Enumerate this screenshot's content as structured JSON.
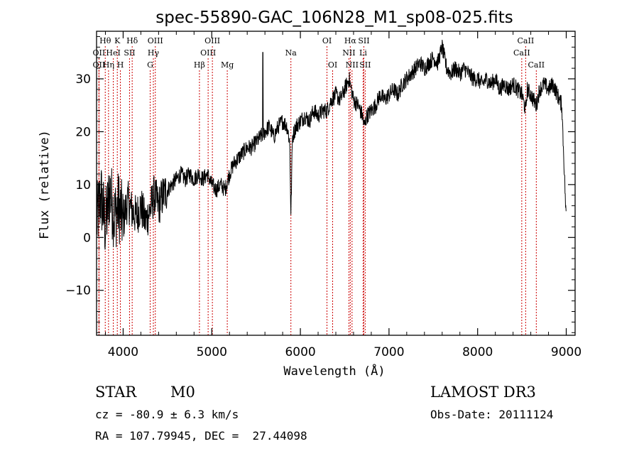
{
  "chart_data": {
    "type": "line",
    "title": "spec-55890-GAC_106N28_M1_sp08-025.fits",
    "xlabel": "Wavelength (Å)",
    "ylabel": "Flux (relative)",
    "xlim": [
      3700,
      9100
    ],
    "ylim": [
      -18.5,
      39
    ],
    "xticks": [
      4000,
      5000,
      6000,
      7000,
      8000,
      9000
    ],
    "yticks": [
      -10,
      0,
      10,
      20,
      30
    ],
    "series": [
      {
        "name": "flux",
        "x": [
          3700,
          3750,
          3800,
          3850,
          3900,
          3950,
          4000,
          4050,
          4100,
          4150,
          4200,
          4250,
          4300,
          4350,
          4400,
          4450,
          4500,
          4550,
          4600,
          4650,
          4700,
          4750,
          4800,
          4850,
          4900,
          4950,
          5000,
          5050,
          5100,
          5150,
          5200,
          5250,
          5300,
          5350,
          5400,
          5450,
          5500,
          5550,
          5600,
          5650,
          5700,
          5750,
          5800,
          5850,
          5880,
          5893,
          5910,
          5950,
          6000,
          6050,
          6100,
          6150,
          6200,
          6250,
          6300,
          6350,
          6400,
          6450,
          6500,
          6550,
          6600,
          6650,
          6700,
          6720,
          6750,
          6800,
          6850,
          6900,
          6950,
          7000,
          7050,
          7100,
          7150,
          7200,
          7250,
          7300,
          7350,
          7400,
          7450,
          7500,
          7550,
          7600,
          7650,
          7700,
          7750,
          7800,
          7850,
          7900,
          7950,
          8000,
          8050,
          8100,
          8150,
          8200,
          8250,
          8300,
          8350,
          8400,
          8450,
          8500,
          8542,
          8560,
          8600,
          8662,
          8700,
          8750,
          8800,
          8850,
          8900,
          8950,
          9000
        ],
        "y": [
          3,
          8,
          2,
          9,
          4,
          6,
          3,
          7,
          5,
          4,
          6,
          3,
          5,
          8,
          6,
          8,
          9,
          10,
          11,
          12,
          11,
          12,
          11,
          12,
          11,
          12,
          10,
          9,
          10,
          9,
          12,
          14,
          15,
          16,
          17,
          17,
          18,
          19,
          20,
          21,
          19,
          21,
          22,
          21,
          18,
          4,
          19,
          21,
          22,
          23,
          22,
          24,
          23,
          24,
          24,
          26,
          27,
          26,
          28,
          30,
          26,
          25,
          23,
          21,
          23,
          24,
          25,
          27,
          26,
          27,
          28,
          27,
          29,
          30,
          31,
          32,
          33,
          32,
          33,
          34,
          33,
          36,
          32,
          31,
          32,
          31,
          32,
          31,
          30,
          30,
          29,
          30,
          29,
          30,
          28,
          29,
          28,
          29,
          28,
          27,
          24,
          28,
          27,
          25,
          28,
          29,
          28,
          29,
          27,
          25,
          3
        ]
      }
    ],
    "line_markers": [
      {
        "label": "Hθ",
        "wl": 3798,
        "row": 0
      },
      {
        "label": "OII",
        "wl": 3727,
        "row": 1
      },
      {
        "label": "OII",
        "wl": 3727,
        "row": 2
      },
      {
        "label": "K",
        "wl": 3934,
        "row": 0
      },
      {
        "label": "HeI",
        "wl": 3889,
        "row": 1
      },
      {
        "label": "Hη",
        "wl": 3835,
        "row": 2
      },
      {
        "label": "Hδ",
        "wl": 4102,
        "row": 0
      },
      {
        "label": "SII",
        "wl": 4072,
        "row": 1
      },
      {
        "label": "H",
        "wl": 3969,
        "row": 2
      },
      {
        "label": "OIII",
        "wl": 4363,
        "row": 0
      },
      {
        "label": "Hγ",
        "wl": 4341,
        "row": 1
      },
      {
        "label": "G",
        "wl": 4305,
        "row": 2
      },
      {
        "label": "OIII",
        "wl": 5007,
        "row": 0
      },
      {
        "label": "OIII",
        "wl": 4959,
        "row": 1
      },
      {
        "label": "Hβ",
        "wl": 4861,
        "row": 2
      },
      {
        "label": "Mg",
        "wl": 5175,
        "row": 2
      },
      {
        "label": "Na",
        "wl": 5893,
        "row": 1
      },
      {
        "label": "OI",
        "wl": 6300,
        "row": 0
      },
      {
        "label": "OI",
        "wl": 6364,
        "row": 2
      },
      {
        "label": "Hα",
        "wl": 6563,
        "row": 0
      },
      {
        "label": "SII",
        "wl": 6716,
        "row": 0
      },
      {
        "label": "NII",
        "wl": 6548,
        "row": 1
      },
      {
        "label": "Li",
        "wl": 6708,
        "row": 1
      },
      {
        "label": "NII",
        "wl": 6583,
        "row": 2
      },
      {
        "label": "SII",
        "wl": 6731,
        "row": 2
      },
      {
        "label": "CaII",
        "wl": 8542,
        "row": 0
      },
      {
        "label": "CaII",
        "wl": 8498,
        "row": 1
      },
      {
        "label": "CaII",
        "wl": 8662,
        "row": 2
      }
    ]
  },
  "info": {
    "object_type": "STAR",
    "subclass": "M0",
    "survey": "LAMOST DR3",
    "cz": "cz = -80.9 ± 6.3 km/s",
    "obs_date": "Obs-Date: 20111124",
    "coords": "RA = 107.79945, DEC =  27.44098"
  }
}
